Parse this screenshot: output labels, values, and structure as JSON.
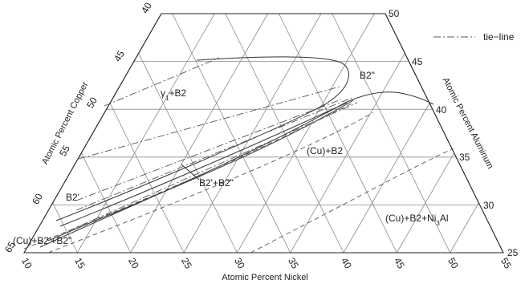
{
  "axes": {
    "bottom": {
      "title": "Atomic Percent Nickel",
      "ticks": [
        "10",
        "15",
        "20",
        "25",
        "30",
        "35",
        "40",
        "45",
        "50",
        "55"
      ]
    },
    "left": {
      "title": "Atomic Percent Copper",
      "ticks": [
        "65",
        "60",
        "55",
        "50",
        "45",
        "40"
      ]
    },
    "right": {
      "title": "Atomic Percent Aluminum",
      "ticks": [
        "50",
        "45",
        "40",
        "35",
        "30",
        "25"
      ]
    }
  },
  "legend": {
    "tie_line_label": "tie−line"
  },
  "phase_labels": {
    "gamma_b2": {
      "main": "γ",
      "sub": "1",
      "rest": "+B2"
    },
    "b2pp": "B2\"",
    "cu_b2": "(Cu)+B2",
    "b2p_b2pp": "B2'+B2\"",
    "b2p": "B2'",
    "cu_b2p_b2pp": "(Cu)+B2'+B2\"",
    "cu_b2_ni3al": {
      "pre": "(Cu)+B2+Ni",
      "sub": "3",
      "post": "Al"
    }
  },
  "colors": {
    "frame": "#222222",
    "grid": "#8a8a8a",
    "lines": "#333333"
  }
}
